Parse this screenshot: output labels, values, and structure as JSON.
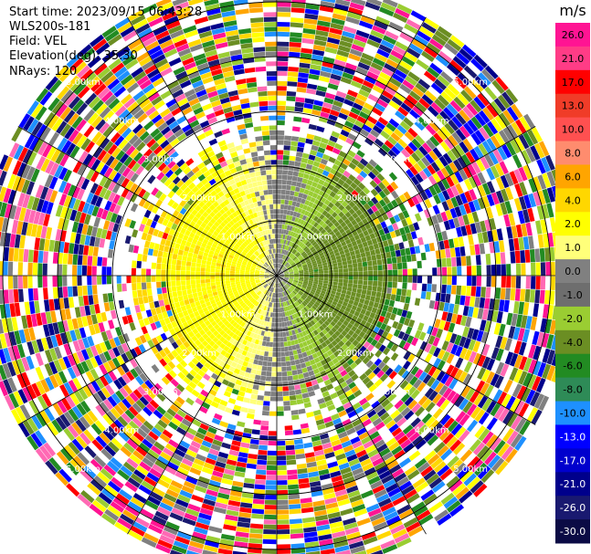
{
  "metadata": {
    "start_time": "Start time: 2023/09/15 06:43:28",
    "instrument": "WLS200s-181",
    "field": "Field: VEL",
    "elevation": "Elevation(deg): 35.30",
    "nrays": "NRays: 120"
  },
  "chart_data": {
    "type": "heatmap",
    "projection": "polar-ppi",
    "field": "VEL",
    "units": "m/s",
    "n_rays": 120,
    "elevation_deg": 35.3,
    "range_rings_km": [
      1.0,
      2.0,
      3.0,
      4.0,
      5.0
    ],
    "ring_labels": [
      "1.00km",
      "2.00km",
      "3.00km",
      "4.00km",
      "5.00km"
    ],
    "clear_range_km": [
      0.0,
      1.6,
      2.7,
      3.0
    ],
    "max_range_km": 5.45,
    "colorbar": {
      "unit_label": "m/s",
      "ticks": [
        "26.0",
        "21.0",
        "17.0",
        "13.0",
        "10.0",
        "8.0",
        "6.0",
        "4.0",
        "2.0",
        "1.0",
        "0.0",
        "-1.0",
        "-2.0",
        "-4.0",
        "-6.0",
        "-8.0",
        "-10.0",
        "-13.0",
        "-17.0",
        "-21.0",
        "-26.0",
        "-30.0"
      ],
      "colors": [
        "#ff1493",
        "#ff3c86",
        "#ff0000",
        "#f03c28",
        "#ff5050",
        "#ff8c6e",
        "#ffa500",
        "#ffd700",
        "#ffff00",
        "#ffff7a",
        "#808080",
        "#6e6e6e",
        "#9acd32",
        "#6b8e23",
        "#228b22",
        "#2e8b57",
        "#1e90ff",
        "#0000ff",
        "#0000cd",
        "#00008b",
        "#191970",
        "#0b0b45"
      ]
    }
  }
}
